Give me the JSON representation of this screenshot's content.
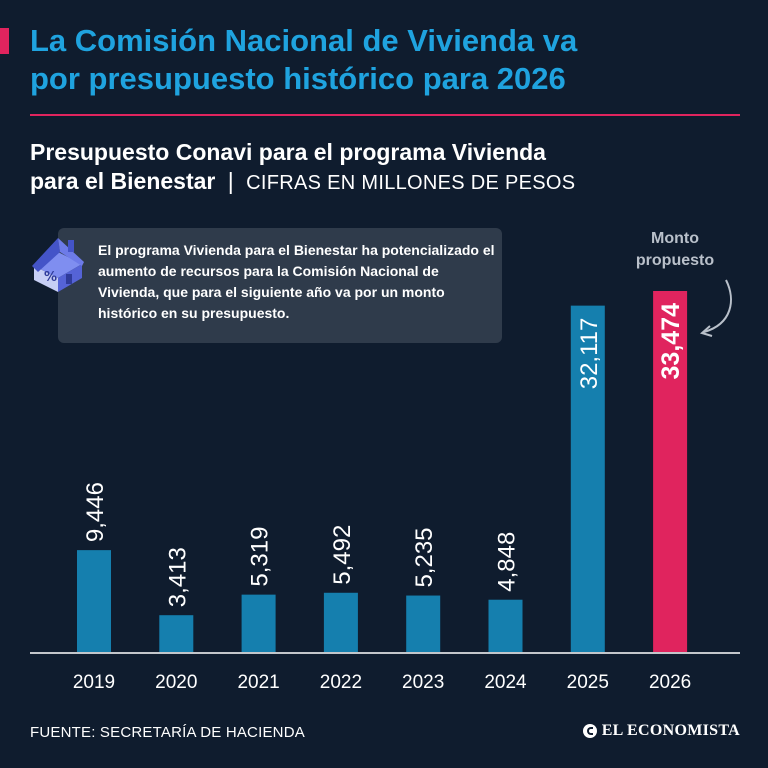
{
  "headline": {
    "line1": "La Comisión Nacional de Vivienda va",
    "line2": "por presupuesto histórico para 2026"
  },
  "subtitle": {
    "strong_line1": "Presupuesto Conavi para el programa Vivienda",
    "strong_line2": "para el Bienestar",
    "separator": "|",
    "units": "CIFRAS EN MILLONES DE PESOS"
  },
  "note": {
    "text": "El programa Vivienda para el Bienestar ha potencializado el aumento de recursos para la Comisión Nacional de Vivienda, que para el siguiente año va por un monto histórico en su presupuesto.",
    "icon": "house-percent-icon"
  },
  "callout": {
    "line1": "Monto",
    "line2": "propuesto"
  },
  "source": "FUENTE: SECRETARÍA DE HACIENDA",
  "brand": "EL ECONOMISTA",
  "colors": {
    "background": "#0f1c2e",
    "bar_default": "#157fae",
    "bar_highlight": "#e0245e",
    "headline": "#1fa3df",
    "note_bg": "#2f3b4b"
  },
  "chart_data": {
    "type": "bar",
    "categories": [
      "2019",
      "2020",
      "2021",
      "2022",
      "2023",
      "2024",
      "2025",
      "2026"
    ],
    "values": [
      9446,
      3413,
      5319,
      5492,
      5235,
      4848,
      32117,
      33474
    ],
    "labels": [
      "9,446",
      "3,413",
      "5,319",
      "5,492",
      "5,235",
      "4,848",
      "32,117",
      "33,474"
    ],
    "highlight_index": 7,
    "ylim": [
      0,
      33474
    ],
    "grid": false,
    "title": "Presupuesto Conavi para el programa Vivienda para el Bienestar",
    "ylabel": "CIFRAS EN MILLONES DE PESOS",
    "xlabel": ""
  }
}
